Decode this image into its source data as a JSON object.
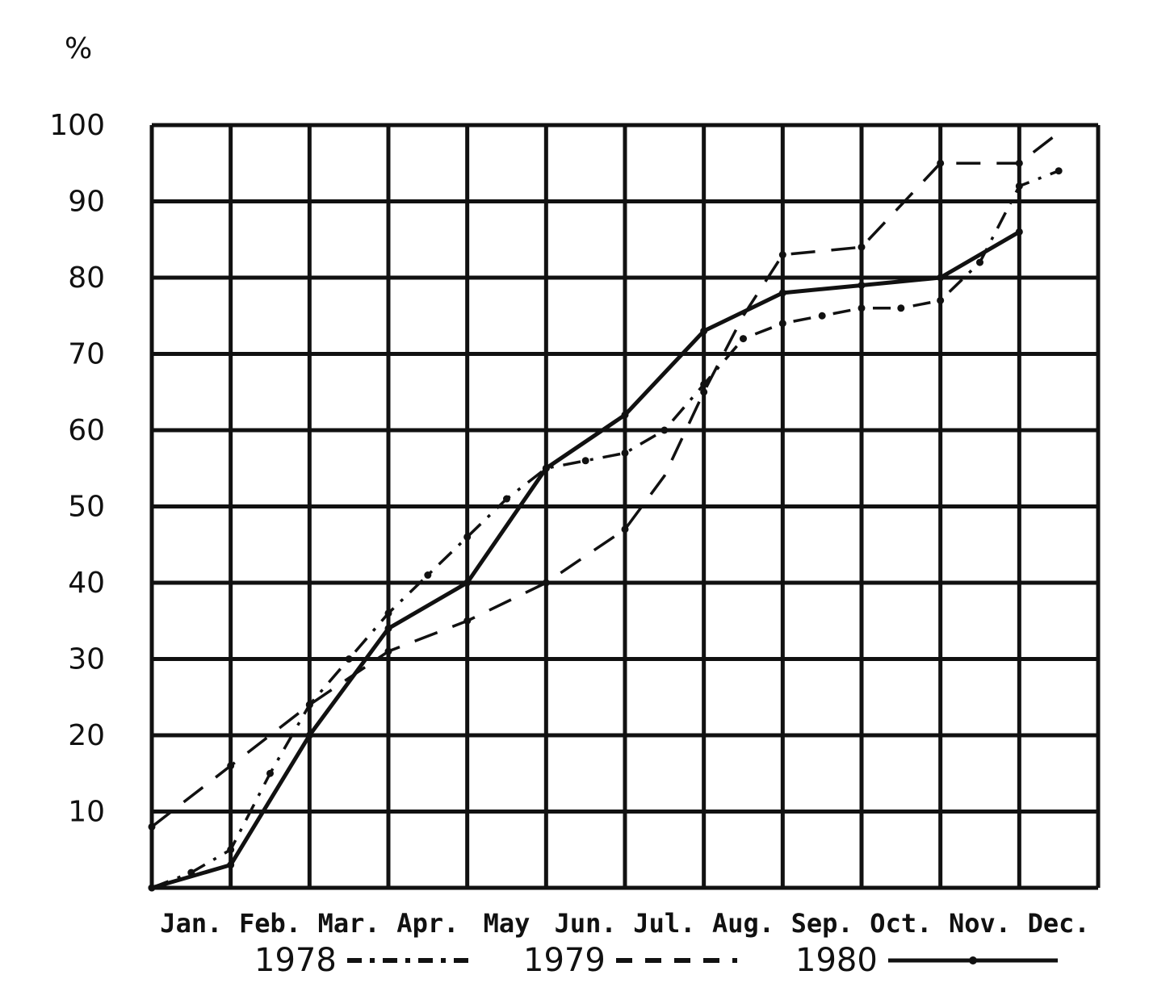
{
  "chart_data": {
    "type": "line",
    "ylabel": "%",
    "ylim": [
      0,
      100
    ],
    "yticks": [
      "10",
      "20",
      "30",
      "40",
      "50",
      "60",
      "70",
      "80",
      "90",
      "100"
    ],
    "categories": [
      "Jan.",
      "Feb.",
      "Mar.",
      "Apr.",
      "May",
      "Jun.",
      "Jul.",
      "Aug.",
      "Sep.",
      "Oct.",
      "Nov.",
      "Dec."
    ],
    "legend_placement": "bottom",
    "grid": true,
    "series": [
      {
        "name": "1978",
        "legend_sample": "-.-.-.",
        "style": "dash-dot",
        "color": "#111111",
        "points": [
          [
            0,
            0
          ],
          [
            0.5,
            2
          ],
          [
            1,
            5
          ],
          [
            1.5,
            15
          ],
          [
            2,
            24
          ],
          [
            2.5,
            30
          ],
          [
            3,
            36
          ],
          [
            3.5,
            41
          ],
          [
            4,
            46
          ],
          [
            4.5,
            51
          ],
          [
            5,
            55
          ],
          [
            5.5,
            56
          ],
          [
            6,
            57
          ],
          [
            6.5,
            60
          ],
          [
            7,
            66
          ],
          [
            7.5,
            72
          ],
          [
            8,
            74
          ],
          [
            8.5,
            75
          ],
          [
            9,
            76
          ],
          [
            9.5,
            76
          ],
          [
            10,
            77
          ],
          [
            10.5,
            82
          ],
          [
            11,
            92
          ],
          [
            11.5,
            94
          ]
        ]
      },
      {
        "name": "1979",
        "legend_sample": "- - - -",
        "style": "dashed",
        "color": "#111111",
        "points": [
          [
            0,
            8
          ],
          [
            1,
            16
          ],
          [
            2,
            24
          ],
          [
            3,
            31
          ],
          [
            4,
            35
          ],
          [
            5,
            40
          ],
          [
            6,
            47
          ],
          [
            6.5,
            54
          ],
          [
            7,
            65
          ],
          [
            7.5,
            75
          ],
          [
            8,
            83
          ],
          [
            9,
            84
          ],
          [
            10,
            95
          ],
          [
            11,
            95
          ],
          [
            11.5,
            99
          ]
        ]
      },
      {
        "name": "1980",
        "legend_sample": "——•——",
        "style": "solid",
        "color": "#111111",
        "points": [
          [
            0,
            0
          ],
          [
            1,
            3
          ],
          [
            2,
            20
          ],
          [
            3,
            34
          ],
          [
            4,
            40
          ],
          [
            5,
            55
          ],
          [
            6,
            62
          ],
          [
            7,
            73
          ],
          [
            8,
            78
          ],
          [
            9,
            79
          ],
          [
            10,
            80
          ],
          [
            11,
            86
          ]
        ]
      }
    ]
  }
}
